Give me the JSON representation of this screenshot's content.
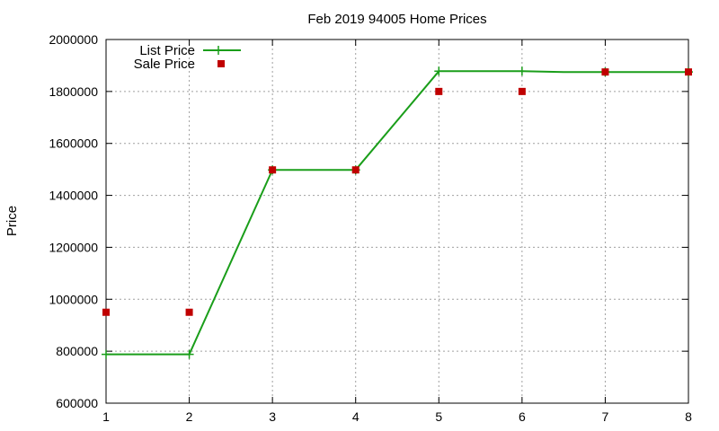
{
  "chart_data": {
    "type": "line",
    "title": "Feb 2019 94005 Home Prices",
    "xlabel": "",
    "ylabel": "Price",
    "xlim": [
      1,
      8
    ],
    "ylim": [
      600000,
      2000000
    ],
    "x_ticks": [
      "1",
      "2",
      "3",
      "4",
      "5",
      "6",
      "7",
      "8"
    ],
    "y_ticks": [
      "600000",
      "800000",
      "1000000",
      "1200000",
      "1400000",
      "1600000",
      "1800000",
      "2000000"
    ],
    "grid": true,
    "legend_position": "top-left",
    "series": [
      {
        "name": "List Price",
        "style": "lines+points",
        "marker": "plus",
        "color": "#1a9e1a",
        "points": [
          [
            1,
            788000
          ],
          [
            2,
            788000
          ],
          [
            3,
            1498000
          ],
          [
            4,
            1498000
          ],
          [
            5,
            1878000
          ],
          [
            6,
            1878000
          ],
          [
            6.5,
            1875000
          ],
          [
            7,
            1875000
          ],
          [
            8,
            1875000
          ]
        ],
        "marked_x": [
          1,
          2,
          3,
          4,
          5,
          6,
          7,
          8
        ]
      },
      {
        "name": "Sale Price",
        "style": "points",
        "marker": "square",
        "color": "#c00000",
        "points": [
          [
            1,
            950000
          ],
          [
            2,
            950000
          ],
          [
            3,
            1498000
          ],
          [
            4,
            1498000
          ],
          [
            5,
            1800000
          ],
          [
            6,
            1800000
          ],
          [
            7,
            1875000
          ],
          [
            8,
            1875000
          ]
        ]
      }
    ]
  }
}
